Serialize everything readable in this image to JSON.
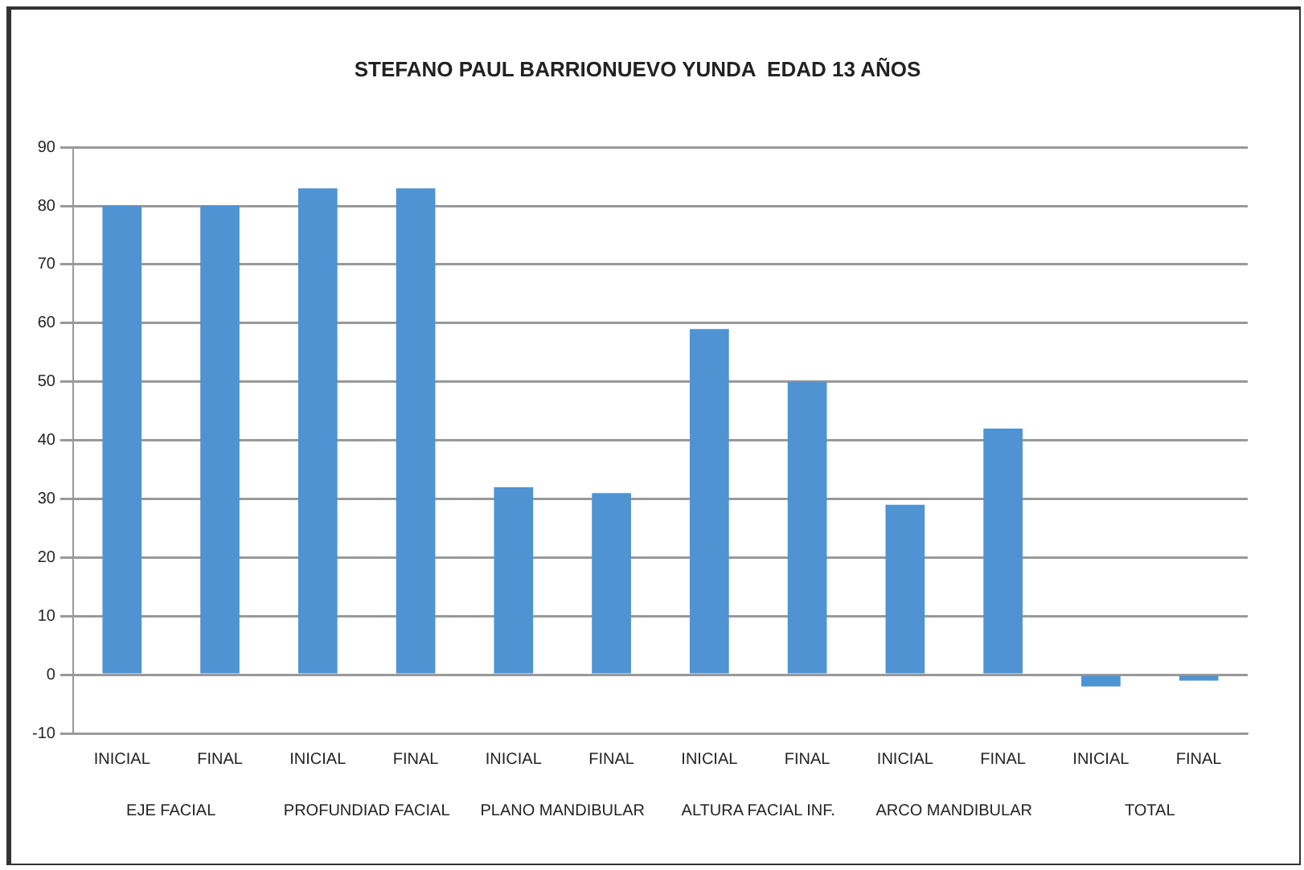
{
  "chart_data": {
    "type": "bar",
    "title": "STEFANO PAUL BARRIONUEVO YUNDA  EDAD 13 AÑOS",
    "categories": [
      "INICIAL",
      "FINAL",
      "INICIAL",
      "FINAL",
      "INICIAL",
      "FINAL",
      "INICIAL",
      "FINAL",
      "INICIAL",
      "FINAL",
      "INICIAL",
      "FINAL"
    ],
    "values": [
      80,
      80,
      83,
      83,
      32,
      31,
      59,
      50,
      29,
      42,
      -2,
      -1
    ],
    "color": "#4f93d2",
    "annotations": [
      "EJE FACIAL",
      "PROFUNDIAD FACIAL",
      "PLANO MANDIBULAR",
      "ALTURA FACIAL INF.",
      "ARCO MANDIBULAR",
      "TOTAL"
    ],
    "ylim": [
      -10,
      90
    ],
    "yticks": [
      -10,
      0,
      10,
      20,
      30,
      40,
      50,
      60,
      70,
      80,
      90
    ],
    "grid": "y",
    "legend": false
  }
}
